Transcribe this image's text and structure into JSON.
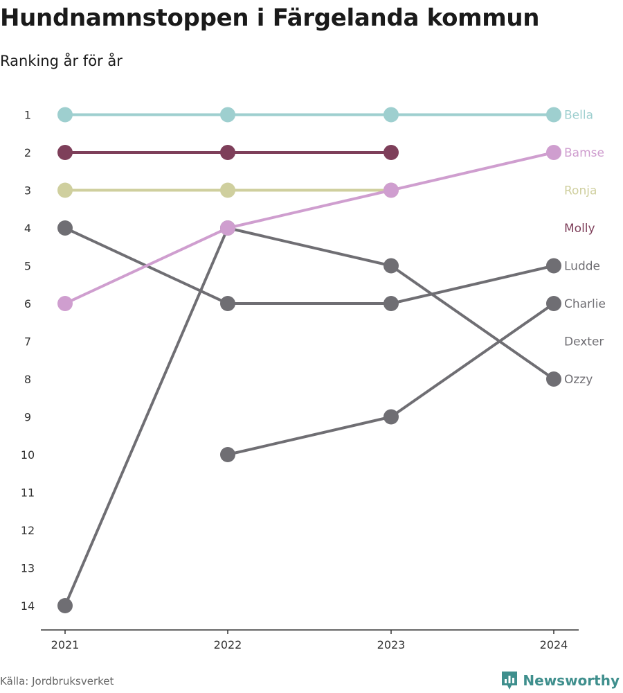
{
  "title": "Hundnamnstoppen i Färgelanda kommun",
  "subtitle": "Ranking år för år",
  "source": "Källa: Jordbruksverket",
  "brand": "Newsworthy",
  "brand_icon": "newsworthy-logo-icon",
  "colors": {
    "Bella": "#9ecfcf",
    "Molly": "#7e3f5a",
    "Ronja": "#cfcf9e",
    "Bamse": "#cf9ecf",
    "other": "#6f6e73",
    "other_label": "#6f6e73",
    "axis": "#333333",
    "brand": "#3f8f8d"
  },
  "chart_data": {
    "type": "line",
    "chart_subtype": "bump",
    "x": [
      "2021",
      "2022",
      "2023",
      "2024"
    ],
    "ylim": [
      1,
      14
    ],
    "y_reversed": true,
    "y_ticks": [
      "1",
      "2",
      "3",
      "4",
      "5",
      "6",
      "7",
      "8",
      "9",
      "10",
      "11",
      "12",
      "13",
      "14"
    ],
    "grid": false,
    "series": [
      {
        "name": "Bella",
        "values": [
          1,
          1,
          1,
          1
        ],
        "highlight": true
      },
      {
        "name": "Molly",
        "values": [
          2,
          2,
          2,
          null
        ],
        "highlight": true
      },
      {
        "name": "Ronja",
        "values": [
          3,
          3,
          3,
          null
        ],
        "highlight": true
      },
      {
        "name": "Bamse",
        "values": [
          6,
          4,
          3,
          2
        ],
        "highlight": true
      },
      {
        "name": "Ludde",
        "values": [
          4,
          6,
          6,
          5
        ],
        "highlight": false
      },
      {
        "name": "Charlie",
        "values": [
          null,
          10,
          9,
          6
        ],
        "highlight": false
      },
      {
        "name": "Dexter",
        "values": [
          null,
          null,
          null,
          null
        ],
        "highlight": false
      },
      {
        "name": "Ozzy",
        "values": [
          14,
          4,
          5,
          8
        ],
        "highlight": false
      }
    ],
    "end_labels": [
      {
        "name": "Bella",
        "rank": 1
      },
      {
        "name": "Bamse",
        "rank": 2
      },
      {
        "name": "Ronja",
        "rank": 3
      },
      {
        "name": "Molly",
        "rank": 4
      },
      {
        "name": "Ludde",
        "rank": 5
      },
      {
        "name": "Charlie",
        "rank": 6
      },
      {
        "name": "Dexter",
        "rank": 7
      },
      {
        "name": "Ozzy",
        "rank": 8
      }
    ]
  }
}
